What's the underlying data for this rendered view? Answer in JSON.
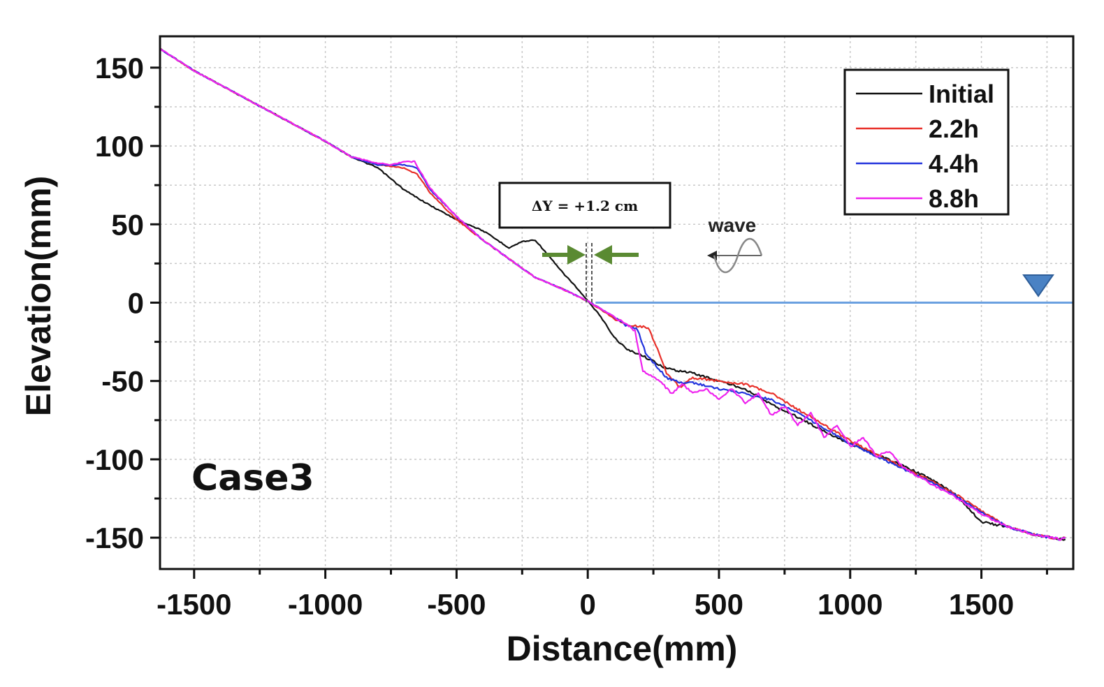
{
  "chart_data": {
    "type": "line",
    "title": "",
    "xlabel": "Distance(mm)",
    "ylabel": "Elevation(mm)",
    "xlim": [
      -1630,
      1850
    ],
    "ylim": [
      -170,
      170
    ],
    "xticks": [
      -1500,
      -1000,
      -500,
      0,
      500,
      1000,
      1500
    ],
    "yticks": [
      150,
      100,
      50,
      0,
      -50,
      -100,
      -150
    ],
    "grid": true,
    "legend_position": "top-right",
    "water_level": 0,
    "series": [
      {
        "name": "Initial",
        "color": "#111111",
        "x": [
          -1630,
          -1500,
          -1300,
          -1100,
          -1000,
          -900,
          -800,
          -700,
          -600,
          -500,
          -400,
          -300,
          -250,
          -200,
          -150,
          -100,
          -50,
          0,
          50,
          100,
          150,
          200,
          300,
          400,
          500,
          600,
          700,
          800,
          900,
          1000,
          1100,
          1200,
          1300,
          1400,
          1500,
          1600,
          1700,
          1800,
          1820
        ],
        "y": [
          162,
          148,
          130,
          112,
          103,
          93,
          86,
          72,
          62,
          53,
          46,
          35,
          39,
          40,
          30,
          20,
          11,
          1,
          -9,
          -22,
          -30,
          -33,
          -42,
          -45,
          -50,
          -55,
          -65,
          -73,
          -82,
          -90,
          -97,
          -104,
          -112,
          -122,
          -140,
          -143,
          -148,
          -151,
          -151
        ]
      },
      {
        "name": "2.2h",
        "color": "#e8302a",
        "x": [
          -1630,
          -1500,
          -1300,
          -1100,
          -1000,
          -900,
          -800,
          -700,
          -650,
          -600,
          -500,
          -400,
          -300,
          -200,
          -100,
          0,
          100,
          150,
          200,
          230,
          260,
          300,
          350,
          400,
          500,
          600,
          700,
          800,
          900,
          1000,
          1100,
          1200,
          1300,
          1400,
          1500,
          1600,
          1700,
          1800,
          1820
        ],
        "y": [
          162,
          148,
          130,
          112,
          103,
          93,
          88,
          86,
          82,
          70,
          53,
          40,
          28,
          16,
          9,
          1,
          -10,
          -14,
          -15,
          -16,
          -27,
          -45,
          -54,
          -48,
          -50,
          -52,
          -58,
          -68,
          -78,
          -88,
          -97,
          -105,
          -113,
          -122,
          -133,
          -143,
          -148,
          -151,
          -150
        ]
      },
      {
        "name": "4.4h",
        "color": "#2233dd",
        "x": [
          -1630,
          -1500,
          -1300,
          -1100,
          -1000,
          -900,
          -800,
          -700,
          -650,
          -600,
          -500,
          -400,
          -300,
          -200,
          -100,
          0,
          100,
          150,
          190,
          220,
          260,
          300,
          350,
          400,
          500,
          600,
          700,
          800,
          900,
          1000,
          1100,
          1200,
          1300,
          1400,
          1500,
          1600,
          1700,
          1800,
          1820
        ],
        "y": [
          162,
          148,
          130,
          112,
          103,
          93,
          88,
          88,
          86,
          72,
          55,
          40,
          28,
          16,
          9,
          1,
          -9,
          -15,
          -17,
          -32,
          -40,
          -48,
          -51,
          -51,
          -55,
          -58,
          -62,
          -70,
          -80,
          -90,
          -98,
          -106,
          -114,
          -123,
          -134,
          -143,
          -148,
          -151,
          -150
        ]
      },
      {
        "name": "8.8h",
        "color": "#ee22ee",
        "x": [
          -1630,
          -1500,
          -1300,
          -1100,
          -1000,
          -900,
          -800,
          -750,
          -700,
          -660,
          -600,
          -500,
          -400,
          -300,
          -200,
          -100,
          0,
          100,
          150,
          180,
          210,
          240,
          280,
          320,
          360,
          400,
          450,
          500,
          550,
          600,
          650,
          700,
          750,
          800,
          850,
          900,
          950,
          1000,
          1050,
          1100,
          1150,
          1200,
          1300,
          1400,
          1500,
          1600,
          1700,
          1800,
          1820
        ],
        "y": [
          162,
          148,
          130,
          112,
          103,
          93,
          89,
          88,
          90,
          90,
          73,
          55,
          40,
          28,
          16,
          9,
          1,
          -9,
          -14,
          -18,
          -44,
          -46,
          -51,
          -58,
          -52,
          -58,
          -55,
          -62,
          -55,
          -64,
          -58,
          -72,
          -66,
          -78,
          -70,
          -86,
          -78,
          -92,
          -86,
          -98,
          -95,
          -105,
          -115,
          -124,
          -135,
          -143,
          -148,
          -151,
          -150
        ]
      }
    ],
    "annotations": {
      "shift": "ΔY = +1.2 cm",
      "wave": "wave",
      "case": "Case3"
    }
  }
}
